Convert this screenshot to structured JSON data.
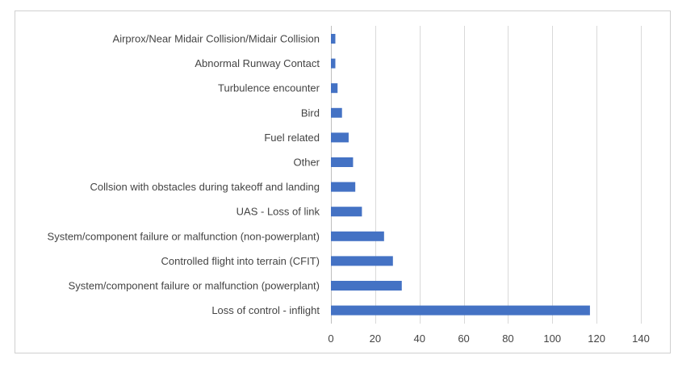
{
  "chart_data": {
    "type": "bar",
    "orientation": "horizontal",
    "categories": [
      "Airprox/Near Midair Collision/Midair Collision",
      "Abnormal Runway Contact",
      "Turbulence encounter",
      "Bird",
      "Fuel related",
      "Other",
      "Collsion with obstacles during takeoff and landing",
      "UAS - Loss of link",
      "System/component failure or malfunction (non-powerplant)",
      "Controlled flight into terrain (CFIT)",
      "System/component failure or malfunction (powerplant)",
      "Loss of control - inflight"
    ],
    "values": [
      2,
      2,
      3,
      5,
      8,
      10,
      11,
      14,
      24,
      28,
      32,
      117
    ],
    "xlim": [
      0,
      140
    ],
    "xticks": [
      "0",
      "20",
      "40",
      "60",
      "80",
      "100",
      "120",
      "140"
    ],
    "grid": "vertical",
    "bar_color": "#4472C4",
    "title": "",
    "xlabel": "",
    "ylabel": ""
  }
}
